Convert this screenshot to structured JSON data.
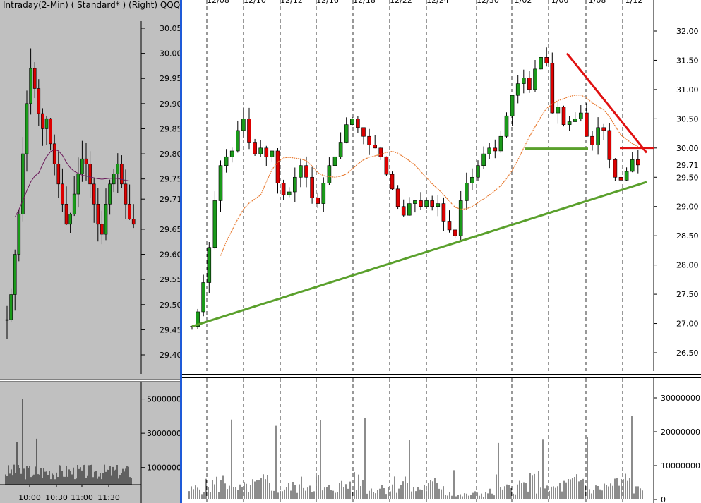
{
  "window": {
    "left_title": "Intraday(2-Min) ( Standard* )   (Right)  QQQ"
  },
  "colors": {
    "up_candle": "#1a9a1a",
    "down_candle": "#dd0000",
    "ma_line": "#e87a30",
    "support_line": "#5aa02c",
    "resistance_line": "#e01010",
    "neckline": "#5aa02c",
    "left_ma": "#6a1a5a",
    "divider": "#1e5ad8"
  },
  "chart_data": [
    {
      "type": "candlestick",
      "panel": "left-intraday-price",
      "title": "Intraday(2-Min) ( Standard* )   (Right)  QQQ",
      "y_ticks": [
        "30.05",
        "30.00",
        "29.95",
        "29.90",
        "29.85",
        "29.80",
        "29.75",
        "29.71",
        "29.65",
        "29.60",
        "29.55",
        "29.50",
        "29.45",
        "29.40"
      ],
      "ylim": [
        29.38,
        30.07
      ],
      "x_ticks": [
        "10:00",
        "10:30",
        "11:00",
        "11:30"
      ],
      "closes_approx": [
        29.47,
        29.52,
        29.6,
        29.68,
        29.8,
        29.9,
        29.97,
        29.93,
        29.88,
        29.85,
        29.87,
        29.82,
        29.78,
        29.74,
        29.7,
        29.66,
        29.68,
        29.72,
        29.76,
        29.79,
        29.78,
        29.74,
        29.7,
        29.66,
        29.64,
        29.7,
        29.74,
        29.76,
        29.78,
        29.74,
        29.7,
        29.67,
        29.66
      ]
    },
    {
      "type": "bar",
      "panel": "left-intraday-volume",
      "y_ticks": [
        "5000000",
        "3000000",
        "1000000"
      ],
      "ylim": [
        0,
        5600000
      ]
    },
    {
      "type": "candlestick",
      "panel": "right-daily-price",
      "x_ticks": [
        "12/08",
        "12/10",
        "12/12",
        "12/16",
        "12/18",
        "12/22",
        "12/24",
        "12/30",
        "1/02",
        "1/06",
        "1/08",
        "1/12"
      ],
      "y_ticks": [
        "32.00",
        "31.50",
        "31.00",
        "30.50",
        "30.00",
        "29.71",
        "29.50",
        "29.00",
        "28.50",
        "28.00",
        "27.50",
        "27.00",
        "26.50"
      ],
      "ylim": [
        26.2,
        32.2
      ],
      "last_value": "29.71",
      "closes_approx": [
        26.95,
        27.2,
        27.7,
        28.3,
        29.1,
        29.7,
        29.85,
        29.95,
        30.3,
        30.5,
        30.1,
        29.9,
        30.0,
        29.85,
        29.95,
        29.4,
        29.2,
        29.25,
        29.5,
        29.7,
        29.5,
        29.15,
        29.05,
        29.4,
        29.7,
        29.85,
        30.1,
        30.4,
        30.5,
        30.35,
        30.2,
        30.05,
        30.0,
        29.85,
        29.55,
        29.3,
        29.0,
        28.85,
        29.05,
        29.1,
        29.0,
        29.1,
        29.0,
        29.05,
        28.75,
        28.6,
        28.5,
        29.1,
        29.4,
        29.5,
        29.7,
        29.9,
        30.0,
        29.95,
        30.2,
        30.55,
        30.9,
        31.1,
        31.2,
        31.0,
        31.35,
        31.55,
        31.45,
        30.6,
        30.7,
        30.4,
        30.45,
        30.5,
        30.6,
        30.2,
        30.05,
        30.35,
        30.3,
        29.8,
        29.5,
        29.45,
        29.6,
        29.8,
        29.71
      ]
    },
    {
      "type": "bar",
      "panel": "right-daily-volume",
      "y_ticks": [
        "30000000",
        "20000000",
        "10000000",
        "0"
      ],
      "ylim": [
        0,
        35000000
      ]
    }
  ]
}
